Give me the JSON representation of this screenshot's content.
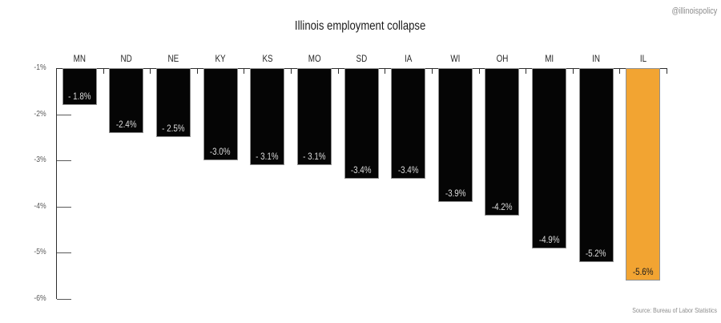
{
  "header": {
    "handle": "@illinoispolicy"
  },
  "footer": {
    "source": "Source: Bureau of Labor Statistics"
  },
  "chart_data": {
    "type": "bar",
    "title": "Illinois employment collapse",
    "categories": [
      "MN",
      "ND",
      "NE",
      "KY",
      "KS",
      "MO",
      "SD",
      "IA",
      "WI",
      "OH",
      "MI",
      "IN",
      "IL"
    ],
    "values": [
      -1.8,
      -2.4,
      -2.5,
      -3.0,
      -3.1,
      -3.1,
      -3.4,
      -3.4,
      -3.9,
      -4.2,
      -4.9,
      -5.2,
      -5.6
    ],
    "bar_labels": [
      "- 1.8%",
      "-2.4%",
      "- 2.5%",
      "-3.0%",
      "- 3.1%",
      "- 3.1%",
      "-3.4%",
      "-3.4%",
      "-3.9%",
      "-4.2%",
      "-4.9%",
      "-5.2%",
      "-5.6%"
    ],
    "highlight_category": "IL",
    "xlabel": "",
    "ylabel": "",
    "yticks": [
      "-1%",
      "-2%",
      "-3%",
      "-4%",
      "-5%",
      "-6%"
    ],
    "ylim": [
      -6,
      -1
    ],
    "grid": false,
    "legend": "none",
    "colors": {
      "bar": "#050505",
      "highlight": "#F2A432",
      "bar_label": "#DBDBDB",
      "highlight_label": "#1A1A1A",
      "axis": "#2E2E2E",
      "tick": "#5A5A5A",
      "category_label": "#262626",
      "ytick_label": "#595959",
      "muted_text": "#8C8C8C",
      "title_text": "#1A1A1A",
      "bar_edge": "#909090"
    }
  }
}
